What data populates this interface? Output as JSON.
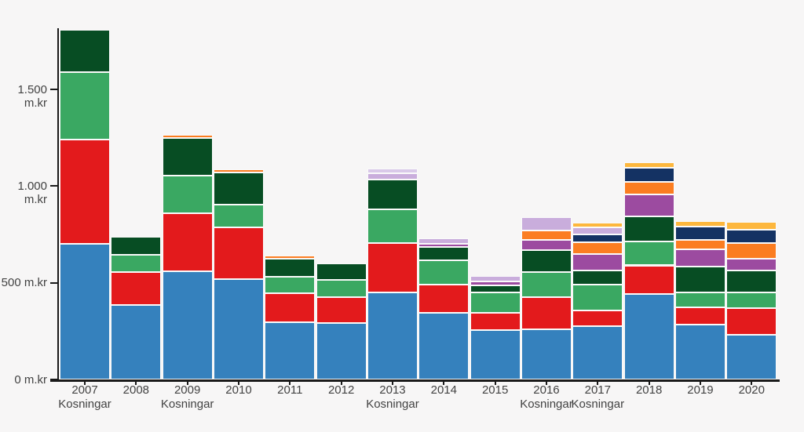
{
  "chart_data": {
    "type": "bar",
    "stacked": true,
    "title": "",
    "unit": "m.kr",
    "grid": false,
    "legend": "none",
    "categories": [
      "2007",
      "2008",
      "2009",
      "2010",
      "2011",
      "2012",
      "2013",
      "2014",
      "2015",
      "2016",
      "2017",
      "2018",
      "2019",
      "2020"
    ],
    "election_label": "Kosningar",
    "election_years": [
      "2007",
      "2009",
      "2013",
      "2016",
      "2017"
    ],
    "xlabel": "",
    "ylabel": "m.kr",
    "ylim": [
      0,
      1868
    ],
    "y_ticks": [
      {
        "value": 0,
        "label": "0 m.kr"
      },
      {
        "value": 500,
        "label": "500 m.kr"
      },
      {
        "value": 1000,
        "label": "1.000 m.kr"
      },
      {
        "value": 1500,
        "label": "1.500 m.kr"
      }
    ],
    "series": [
      {
        "name": "blue",
        "color": "#3581bd",
        "values": [
          700,
          385,
          560,
          520,
          295,
          290,
          450,
          345,
          255,
          260,
          275,
          440,
          285,
          230
        ]
      },
      {
        "name": "red",
        "color": "#e31a1c",
        "values": [
          540,
          170,
          300,
          265,
          150,
          135,
          255,
          145,
          90,
          165,
          80,
          150,
          90,
          140
        ]
      },
      {
        "name": "green",
        "color": "#3aa862",
        "values": [
          350,
          90,
          195,
          120,
          85,
          90,
          175,
          125,
          105,
          130,
          135,
          125,
          75,
          80
        ]
      },
      {
        "name": "dark-green",
        "color": "#074d23",
        "values": [
          220,
          95,
          195,
          165,
          95,
          85,
          155,
          70,
          35,
          115,
          75,
          130,
          135,
          115
        ]
      },
      {
        "name": "purple",
        "color": "#9c4ba0",
        "values": [
          0,
          0,
          0,
          0,
          0,
          0,
          0,
          15,
          20,
          50,
          85,
          110,
          90,
          60
        ]
      },
      {
        "name": "orange",
        "color": "#fb7d21",
        "values": [
          0,
          0,
          15,
          15,
          15,
          0,
          0,
          0,
          0,
          50,
          60,
          65,
          45,
          80
        ]
      },
      {
        "name": "navy",
        "color": "#143263",
        "values": [
          0,
          0,
          0,
          0,
          0,
          0,
          0,
          0,
          0,
          0,
          40,
          75,
          70,
          70
        ]
      },
      {
        "name": "lavender",
        "color": "#c9addc",
        "values": [
          0,
          0,
          0,
          0,
          0,
          0,
          30,
          30,
          30,
          70,
          35,
          0,
          0,
          0
        ]
      },
      {
        "name": "lavender-light",
        "color": "#d9c9e9",
        "values": [
          0,
          0,
          0,
          0,
          0,
          0,
          25,
          0,
          0,
          0,
          0,
          0,
          0,
          0
        ]
      },
      {
        "name": "amber",
        "color": "#fdb73d",
        "values": [
          0,
          0,
          0,
          0,
          0,
          0,
          0,
          0,
          0,
          0,
          25,
          30,
          30,
          40
        ]
      }
    ],
    "totals": [
      1810,
      740,
      1265,
      1085,
      640,
      600,
      1090,
      730,
      535,
      840,
      810,
      1125,
      820,
      815
    ]
  },
  "layout_colors": {
    "background": "#f7f6f6",
    "axis": "#1a1a1a",
    "text": "#424242",
    "segment_border": "#fafafa"
  }
}
